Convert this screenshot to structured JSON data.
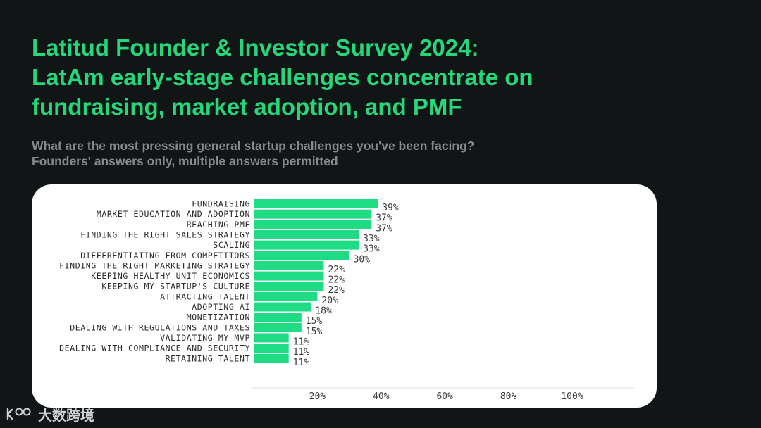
{
  "title_lines": [
    "Latitud Founder & Investor Survey 2024:",
    "LatAm early-stage challenges concentrate on",
    "fundraising, market adoption, and PMF"
  ],
  "subtitle_lines": [
    "What are the most pressing general startup challenges you've been facing?",
    "Founders' answers only, multiple answers permitted"
  ],
  "watermark_text": "大数跨境",
  "colors": {
    "accent": "#27d67a",
    "bar": "#1fdc84",
    "background": "#111516"
  },
  "chart_data": {
    "type": "bar",
    "orientation": "horizontal",
    "categories": [
      "FUNDRAISING",
      "MARKET EDUCATION AND ADOPTION",
      "REACHING PMF",
      "FINDING THE RIGHT SALES STRATEGY",
      "SCALING",
      "DIFFERENTIATING FROM COMPETITORS",
      "FINDING THE RIGHT MARKETING STRATEGY",
      "KEEPING HEALTHY UNIT ECONOMICS",
      "KEEPING MY STARTUP'S CULTURE",
      "ATTRACTING TALENT",
      "ADOPTING AI",
      "MONETIZATION",
      "DEALING WITH REGULATIONS AND TAXES",
      "VALIDATING MY MVP",
      "DEALING WITH COMPLIANCE AND SECURITY",
      "RETAINING TALENT"
    ],
    "values": [
      39,
      37,
      37,
      33,
      33,
      30,
      22,
      22,
      22,
      20,
      18,
      15,
      15,
      11,
      11,
      11
    ],
    "value_labels": [
      "39%",
      "37%",
      "37%",
      "33%",
      "33%",
      "30%",
      "22%",
      "22%",
      "22%",
      "20%",
      "18%",
      "15%",
      "15%",
      "11%",
      "11%",
      "11%"
    ],
    "x_ticks": [
      20,
      40,
      60,
      80,
      100
    ],
    "x_tick_labels": [
      "20%",
      "40%",
      "60%",
      "80%",
      "100%"
    ],
    "xlim": [
      0,
      120
    ],
    "grid": false,
    "legend": "none"
  }
}
